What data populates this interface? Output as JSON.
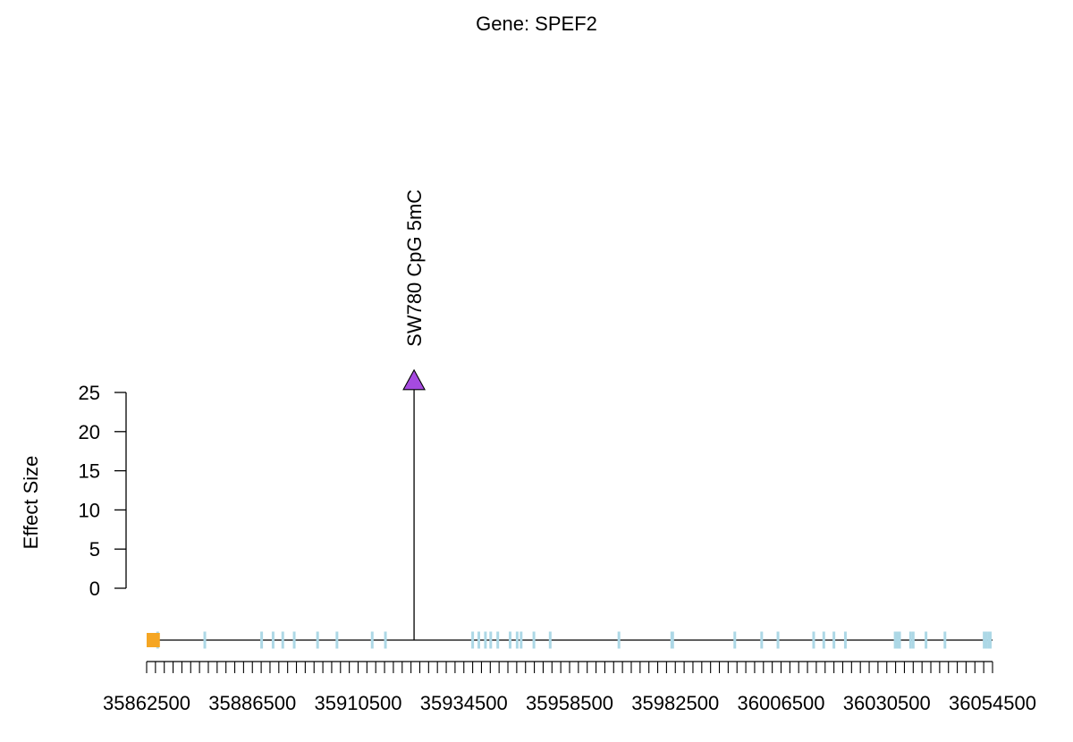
{
  "chart_data": {
    "type": "lollipop",
    "title": "Gene: SPEF2",
    "ylabel": "Effect Size",
    "xlabel": "",
    "ylim": [
      0,
      25
    ],
    "y_ticks": [
      0,
      5,
      10,
      15,
      20,
      25
    ],
    "xlim": [
      35862500,
      36054500
    ],
    "x_tick_labels": [
      35862500,
      35886500,
      35910500,
      35934500,
      35958500,
      35982500,
      36006500,
      36030500,
      36054500
    ],
    "x_minor_step": 2000,
    "grid": false,
    "points": [
      {
        "x": 35923200,
        "y": 26.5,
        "label": "SW780 CpG 5mC",
        "color": "#A64AE0",
        "shape": "triangle-up"
      }
    ],
    "gene_track": {
      "line_color": "#000000",
      "exon_color": "#ADD8E6",
      "highlight_color": "#F5A623",
      "highlight_range": [
        35862500,
        35865500
      ],
      "exons": [
        35865000,
        35875700,
        35888600,
        35891200,
        35893400,
        35896000,
        35901300,
        35905700,
        35913700,
        35916700,
        35936500,
        35937900,
        35939400,
        35940600,
        35942200,
        35945000,
        35946600,
        35947500,
        35950400,
        35954100,
        35969700,
        35981700,
        35981900,
        35996000,
        36002100,
        36005800,
        36013900,
        36016200,
        36018500,
        36021100,
        36032400,
        36032900,
        36033400,
        36035900,
        36036500,
        36039400,
        36043700,
        36052600,
        36053000,
        36053600,
        36054000
      ]
    }
  }
}
